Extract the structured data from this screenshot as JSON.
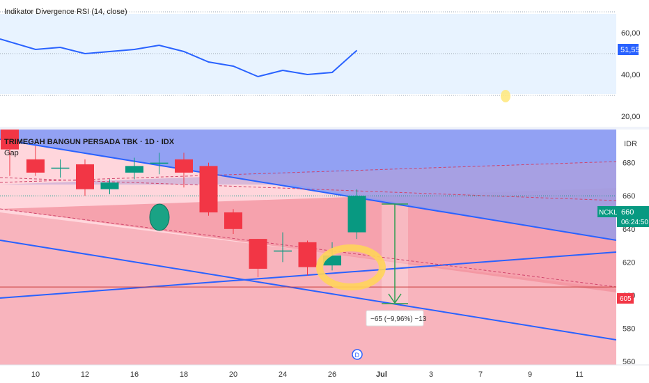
{
  "currency": "IDR",
  "accent_colors": {
    "up": "#089981",
    "down": "#f23645",
    "line": "#2962ff",
    "rsi_bg": "#e8f3ff"
  },
  "rsi_panel": {
    "title": "Indikator Divergence RSI (14, close)",
    "current_label": "51,55"
  },
  "main_panel": {
    "title": "TRIMEGAH BANGUN PERSADA TBK · 1D · IDX",
    "gap_label": "Gap",
    "symbol_badge": "NCKL",
    "price_badge": "660",
    "countdown": "06:24:50",
    "level_badge": "605",
    "measure_label": "−65 (−9,96%) −13",
    "dividend_marker": "D"
  },
  "chart_data": [
    {
      "type": "line",
      "title": "Indikator Divergence RSI (14, close)",
      "ylim": [
        15,
        69
      ],
      "yticks": [
        20,
        40,
        60
      ],
      "ytick_labels": [
        "20,00",
        "40,00",
        "60,00"
      ],
      "reference_lines": [
        70,
        50,
        30
      ],
      "x_index": [
        -1,
        0,
        1,
        2,
        3,
        4,
        5,
        6,
        7,
        8,
        9,
        10,
        11,
        12,
        13
      ],
      "values": [
        57,
        52,
        53,
        50,
        51,
        52,
        54,
        51,
        46,
        44,
        39,
        42,
        40,
        41,
        51.55
      ]
    },
    {
      "type": "candlestick",
      "title": "TRIMEGAH BANGUN PERSADA TBK · 1D · IDX",
      "ylim": [
        558,
        700
      ],
      "yticks": [
        560,
        580,
        600,
        620,
        640,
        660,
        680
      ],
      "x_tick_labels": [
        {
          "i": 0,
          "label": "10"
        },
        {
          "i": 2,
          "label": "12"
        },
        {
          "i": 4,
          "label": "16"
        },
        {
          "i": 6,
          "label": "18"
        },
        {
          "i": 8,
          "label": "20"
        },
        {
          "i": 10,
          "label": "24"
        },
        {
          "i": 12,
          "label": "26"
        },
        {
          "i": 14,
          "label": "Jul"
        },
        {
          "i": 16,
          "label": "3"
        },
        {
          "i": 18,
          "label": "7"
        },
        {
          "i": 20,
          "label": "9"
        },
        {
          "i": 22,
          "label": "11"
        }
      ],
      "candles": [
        {
          "i": -1,
          "o": 700,
          "h": 702,
          "l": 672,
          "c": 688
        },
        {
          "i": 0,
          "o": 682,
          "h": 690,
          "l": 672,
          "c": 674
        },
        {
          "i": 1,
          "o": 677,
          "h": 682,
          "l": 671,
          "c": 677
        },
        {
          "i": 2,
          "o": 679,
          "h": 682,
          "l": 660,
          "c": 664
        },
        {
          "i": 3,
          "o": 664,
          "h": 670,
          "l": 661,
          "c": 668
        },
        {
          "i": 4,
          "o": 674,
          "h": 683,
          "l": 670,
          "c": 678
        },
        {
          "i": 5,
          "o": 680,
          "h": 686,
          "l": 673,
          "c": 680
        },
        {
          "i": 6,
          "o": 682,
          "h": 686,
          "l": 665,
          "c": 674
        },
        {
          "i": 7,
          "o": 678,
          "h": 680,
          "l": 648,
          "c": 650
        },
        {
          "i": 8,
          "o": 650,
          "h": 652,
          "l": 637,
          "c": 640
        },
        {
          "i": 9,
          "o": 634,
          "h": 634,
          "l": 611,
          "c": 616
        },
        {
          "i": 10,
          "o": 627,
          "h": 638,
          "l": 620,
          "c": 627
        },
        {
          "i": 11,
          "o": 632,
          "h": 633,
          "l": 612,
          "c": 617
        },
        {
          "i": 12,
          "o": 618,
          "h": 632,
          "l": 615,
          "c": 624
        },
        {
          "i": 13,
          "o": 638,
          "h": 664,
          "l": 634,
          "c": 660
        }
      ],
      "current_price": 660,
      "horizontal_level": 605,
      "measure": {
        "from_i": 14.5,
        "top": 669,
        "bottom": 603
      },
      "regions": {
        "blue_zone": "upper channel",
        "red_zone": "lower channel",
        "highlight_circle_near_i": 12.6
      }
    }
  ]
}
